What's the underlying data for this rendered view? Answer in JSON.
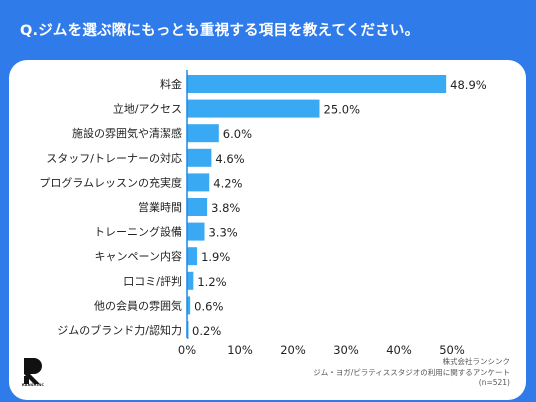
{
  "header": {
    "title": "Q.ジムを選ぶ際にもっとも重視する項目を教えてください。"
  },
  "chart_data": {
    "type": "bar",
    "orientation": "horizontal",
    "categories": [
      "料金",
      "立地/アクセス",
      "施設の雰囲気や清潔感",
      "スタッフ/トレーナーの対応",
      "プログラムレッスンの充実度",
      "営業時間",
      "トレーニング設備",
      "キャンペーン内容",
      "口コミ/評判",
      "他の会員の雰囲気",
      "ジムのブランド力/認知力"
    ],
    "values": [
      48.9,
      25.0,
      6.0,
      4.6,
      4.2,
      3.8,
      3.3,
      1.9,
      1.2,
      0.6,
      0.2
    ],
    "value_labels": [
      "48.9%",
      "25.0%",
      "6.0%",
      "4.6%",
      "4.2%",
      "3.8%",
      "3.3%",
      "1.9%",
      "1.2%",
      "0.6%",
      "0.2%"
    ],
    "xlim": [
      0,
      50
    ],
    "x_ticks": [
      "0%",
      "10%",
      "20%",
      "30%",
      "40%",
      "50%"
    ],
    "bar_color": "#39A9F4",
    "axis_color": "#1E88E5",
    "grid": false
  },
  "footer": {
    "logo_text": "RANSHINC",
    "source_lines": [
      "株式会社ランシンク",
      "ジム・ヨガ/ピラティススタジオの利用に関するアンケート",
      "(n=521)"
    ]
  },
  "colors": {
    "background": "#2F7BEA",
    "card": "#FFFFFF"
  }
}
